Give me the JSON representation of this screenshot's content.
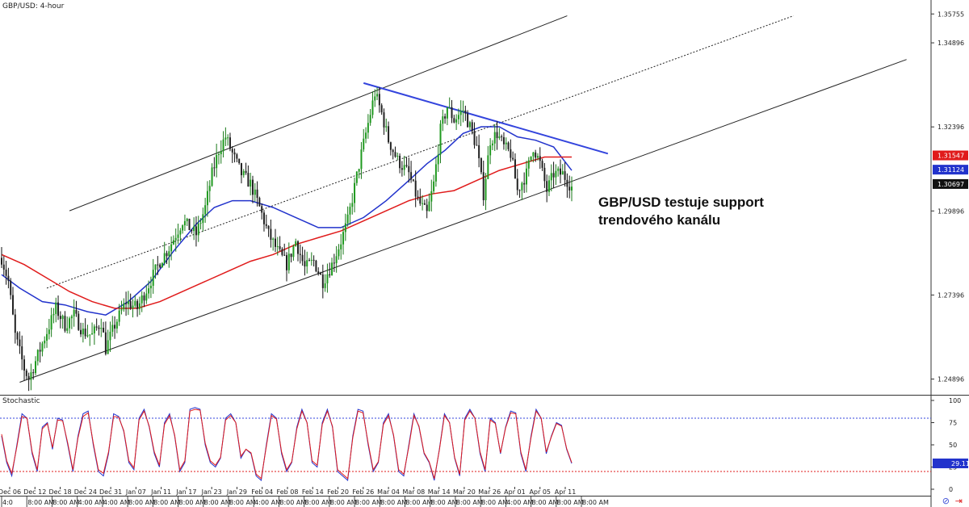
{
  "chart_data": [
    {
      "type": "candlestick",
      "title": "GBP/USD: 4-hour",
      "ylim": [
        1.245,
        1.3605
      ],
      "y_ticks": [
        "1.35755",
        "1.34896",
        "1.32396",
        "1.29896",
        "1.27396",
        "1.24896"
      ],
      "price_badges": [
        {
          "label": "1.31547",
          "value": 1.31547,
          "color": "#e01b1b"
        },
        {
          "label": "1.31124",
          "value": 1.31124,
          "color": "#2233cc"
        },
        {
          "label": "1.30697",
          "value": 1.30697,
          "color": "#111111"
        }
      ],
      "x_date_labels": [
        "Dec 06",
        "Dec 12",
        "Dec 18",
        "Dec 24",
        "Dec 31",
        "Jan 07",
        "Jan 11",
        "Jan 17",
        "Jan 23",
        "Jan 29",
        "Feb 04",
        "Feb 08",
        "Feb 14",
        "Feb 20",
        "Feb 26",
        "Mar 04",
        "Mar 08",
        "Mar 14",
        "Mar 20",
        "Mar 26",
        "Apr 01",
        "Apr 05",
        "Apr 11"
      ],
      "x_time_labels": [
        "4:0",
        "8:00 AM",
        "8:00 AM",
        "4:00 AM",
        "4:00 AM",
        "8:00 AM",
        "8:00 AM",
        "8:00 AM",
        "8:00 AM",
        "8:00 AM",
        "4:00 AM",
        "8:00 AM",
        "8:00 AM",
        "8:00 AM",
        "8:00 AM",
        "8:00 AM",
        "8:00 AM",
        "8:00 AM",
        "8:00 AM",
        "8:00 AM",
        "4:00 AM",
        "8:00 AM",
        "8:00 AM",
        "8:00 AM"
      ],
      "close_path": [
        [
          0,
          1.285
        ],
        [
          3,
          1.278
        ],
        [
          6,
          1.262
        ],
        [
          10,
          1.252
        ],
        [
          12,
          1.249
        ],
        [
          16,
          1.256
        ],
        [
          20,
          1.263
        ],
        [
          24,
          1.27
        ],
        [
          28,
          1.265
        ],
        [
          32,
          1.268
        ],
        [
          36,
          1.263
        ],
        [
          40,
          1.262
        ],
        [
          44,
          1.266
        ],
        [
          46,
          1.258
        ],
        [
          50,
          1.265
        ],
        [
          55,
          1.272
        ],
        [
          60,
          1.27
        ],
        [
          65,
          1.277
        ],
        [
          70,
          1.284
        ],
        [
          74,
          1.288
        ],
        [
          80,
          1.296
        ],
        [
          86,
          1.292
        ],
        [
          90,
          1.3
        ],
        [
          93,
          1.31
        ],
        [
          96,
          1.317
        ],
        [
          99,
          1.321
        ],
        [
          102,
          1.316
        ],
        [
          106,
          1.31
        ],
        [
          110,
          1.307
        ],
        [
          114,
          1.3
        ],
        [
          118,
          1.292
        ],
        [
          122,
          1.287
        ],
        [
          126,
          1.283
        ],
        [
          130,
          1.29
        ],
        [
          134,
          1.282
        ],
        [
          138,
          1.284
        ],
        [
          142,
          1.278
        ],
        [
          146,
          1.283
        ],
        [
          150,
          1.29
        ],
        [
          153,
          1.296
        ],
        [
          156,
          1.306
        ],
        [
          159,
          1.316
        ],
        [
          162,
          1.325
        ],
        [
          165,
          1.334
        ],
        [
          168,
          1.328
        ],
        [
          171,
          1.32
        ],
        [
          175,
          1.314
        ],
        [
          180,
          1.31
        ],
        [
          184,
          1.302
        ],
        [
          188,
          1.298
        ],
        [
          191,
          1.307
        ],
        [
          194,
          1.323
        ],
        [
          197,
          1.33
        ],
        [
          200,
          1.326
        ],
        [
          204,
          1.329
        ],
        [
          207,
          1.324
        ],
        [
          210,
          1.318
        ],
        [
          213,
          1.304
        ],
        [
          216,
          1.32
        ],
        [
          219,
          1.322
        ],
        [
          222,
          1.318
        ],
        [
          225,
          1.316
        ],
        [
          228,
          1.305
        ],
        [
          232,
          1.31
        ],
        [
          235,
          1.318
        ],
        [
          238,
          1.313
        ],
        [
          241,
          1.305
        ],
        [
          244,
          1.31
        ],
        [
          248,
          1.31
        ],
        [
          252,
          1.306
        ]
      ],
      "series": [
        {
          "name": "",
          "color": "#2233cc",
          "points": [
            [
              0,
              1.28
            ],
            [
              8,
              1.276
            ],
            [
              18,
              1.272
            ],
            [
              28,
              1.271
            ],
            [
              38,
              1.269
            ],
            [
              46,
              1.268
            ],
            [
              56,
              1.272
            ],
            [
              66,
              1.278
            ],
            [
              76,
              1.287
            ],
            [
              86,
              1.295
            ],
            [
              94,
              1.3
            ],
            [
              102,
              1.302
            ],
            [
              110,
              1.302
            ],
            [
              120,
              1.3
            ],
            [
              130,
              1.297
            ],
            [
              140,
              1.294
            ],
            [
              150,
              1.294
            ],
            [
              160,
              1.297
            ],
            [
              170,
              1.302
            ],
            [
              180,
              1.308
            ],
            [
              188,
              1.313
            ],
            [
              196,
              1.317
            ],
            [
              204,
              1.322
            ],
            [
              212,
              1.324
            ],
            [
              220,
              1.324
            ],
            [
              228,
              1.321
            ],
            [
              236,
              1.32
            ],
            [
              244,
              1.318
            ],
            [
              252,
              1.311
            ]
          ]
        },
        {
          "name": "",
          "color": "#e01b1b",
          "points": [
            [
              0,
              1.286
            ],
            [
              10,
              1.283
            ],
            [
              20,
              1.279
            ],
            [
              30,
              1.275
            ],
            [
              40,
              1.272
            ],
            [
              50,
              1.27
            ],
            [
              60,
              1.27
            ],
            [
              70,
              1.272
            ],
            [
              80,
              1.275
            ],
            [
              90,
              1.278
            ],
            [
              100,
              1.281
            ],
            [
              110,
              1.284
            ],
            [
              120,
              1.286
            ],
            [
              130,
              1.289
            ],
            [
              140,
              1.291
            ],
            [
              150,
              1.293
            ],
            [
              160,
              1.296
            ],
            [
              170,
              1.299
            ],
            [
              180,
              1.302
            ],
            [
              190,
              1.304
            ],
            [
              200,
              1.305
            ],
            [
              210,
              1.308
            ],
            [
              220,
              1.311
            ],
            [
              230,
              1.313
            ],
            [
              240,
              1.315
            ],
            [
              252,
              1.315
            ]
          ]
        }
      ],
      "trendlines": [
        {
          "name": "channel-top",
          "color": "#222222",
          "dash": false,
          "points": [
            [
              30,
              1.299
            ],
            [
              250,
              1.357
            ]
          ]
        },
        {
          "name": "channel-mid",
          "color": "#222222",
          "dash": true,
          "points": [
            [
              20,
              1.276
            ],
            [
              350,
              1.357
            ]
          ]
        },
        {
          "name": "channel-bottom",
          "color": "#222222",
          "dash": false,
          "points": [
            [
              8,
              1.248
            ],
            [
              400,
              1.344
            ]
          ]
        },
        {
          "name": "resistance",
          "color": "#3344dd",
          "dash": false,
          "points": [
            [
              160,
              1.337
            ],
            [
              268,
              1.316
            ]
          ]
        }
      ],
      "annotation": {
        "line1": "GBP/USD testuje support",
        "line2": "trendového kanálu"
      }
    },
    {
      "type": "line",
      "title": "Stochastic",
      "ylim": [
        0,
        100
      ],
      "y_ticks": [
        "100",
        "75",
        "50",
        "25",
        "0"
      ],
      "levels": [
        80,
        20
      ],
      "value_badge": {
        "label": "29.11",
        "value": 29.11
      },
      "series": [
        {
          "name": "",
          "color": "#2233cc",
          "values": [
            60,
            30,
            15,
            50,
            85,
            80,
            40,
            20,
            70,
            75,
            45,
            80,
            78,
            50,
            20,
            60,
            85,
            88,
            50,
            20,
            15,
            40,
            85,
            82,
            65,
            30,
            22,
            80,
            90,
            70,
            40,
            25,
            75,
            85,
            60,
            20,
            30,
            90,
            92,
            90,
            50,
            30,
            25,
            35,
            80,
            85,
            75,
            35,
            45,
            40,
            15,
            10,
            50,
            85,
            80,
            40,
            20,
            30,
            70,
            90,
            75,
            30,
            25,
            75,
            90,
            70,
            20,
            15,
            10,
            60,
            90,
            88,
            50,
            20,
            30,
            75,
            85,
            60,
            20,
            15,
            50,
            85,
            70,
            40,
            30,
            10,
            45,
            85,
            75,
            35,
            15,
            80,
            90,
            80,
            40,
            20,
            80,
            75,
            40,
            70,
            88,
            86,
            40,
            20,
            60,
            90,
            80,
            40,
            60,
            75,
            72,
            45,
            29
          ]
        },
        {
          "name": "",
          "color": "#e01b1b",
          "values": [
            62,
            32,
            18,
            48,
            82,
            80,
            42,
            22,
            68,
            74,
            47,
            78,
            77,
            52,
            22,
            58,
            82,
            86,
            52,
            22,
            18,
            42,
            82,
            81,
            66,
            32,
            24,
            78,
            88,
            71,
            42,
            27,
            73,
            83,
            61,
            22,
            32,
            88,
            90,
            89,
            52,
            32,
            27,
            36,
            78,
            83,
            75,
            37,
            45,
            41,
            17,
            12,
            48,
            83,
            79,
            42,
            22,
            31,
            68,
            88,
            75,
            32,
            27,
            73,
            88,
            71,
            22,
            17,
            12,
            58,
            88,
            86,
            52,
            22,
            31,
            73,
            83,
            61,
            22,
            17,
            48,
            83,
            71,
            41,
            31,
            12,
            44,
            83,
            75,
            36,
            17,
            78,
            88,
            80,
            42,
            22,
            78,
            74,
            41,
            69,
            86,
            85,
            42,
            22,
            58,
            88,
            80,
            42,
            59,
            74,
            71,
            46,
            30
          ]
        }
      ]
    }
  ],
  "icons": [
    "link-icon",
    "pin-icon"
  ]
}
